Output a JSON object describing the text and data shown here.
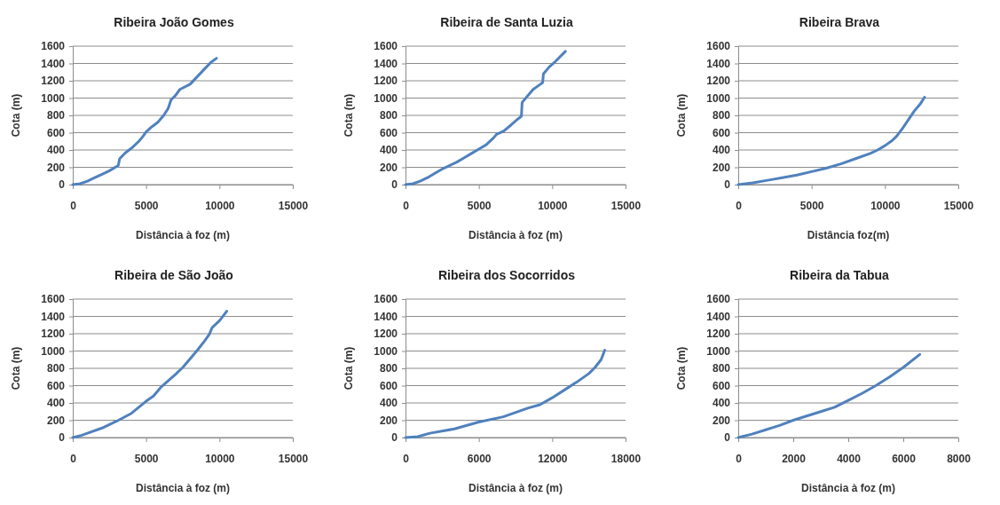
{
  "chart_data": [
    {
      "type": "line",
      "title": "Ribeira João Gomes",
      "xlabel": "Distância à foz (m)",
      "ylabel": "Cota (m)",
      "xlim": [
        0,
        15000
      ],
      "xticks": [
        0,
        5000,
        10000,
        15000
      ],
      "ylim": [
        0,
        1600
      ],
      "yticks": [
        0,
        200,
        400,
        600,
        800,
        1000,
        1200,
        1400,
        1600
      ],
      "grid": "y",
      "series": [
        {
          "color": "#4f81bd",
          "x": [
            0,
            500,
            1000,
            1500,
            2000,
            2500,
            3000,
            3100,
            3200,
            3600,
            4000,
            4500,
            4800,
            5000,
            5400,
            5800,
            6200,
            6500,
            6700,
            7000,
            7300,
            8000,
            8500,
            9000,
            9400,
            9800
          ],
          "values": [
            0,
            10,
            40,
            80,
            120,
            160,
            210,
            220,
            300,
            370,
            420,
            500,
            560,
            610,
            670,
            720,
            800,
            880,
            980,
            1030,
            1100,
            1160,
            1250,
            1340,
            1410,
            1460
          ]
        }
      ]
    },
    {
      "type": "line",
      "title": "Ribeira de Santa Luzia",
      "xlabel": "Distância à foz (m)",
      "ylabel": "Cota (m)",
      "xlim": [
        0,
        15000
      ],
      "xticks": [
        0,
        5000,
        10000,
        15000
      ],
      "ylim": [
        0,
        1600
      ],
      "yticks": [
        0,
        200,
        400,
        600,
        800,
        1000,
        1200,
        1400,
        1600
      ],
      "grid": "y",
      "series": [
        {
          "color": "#4f81bd",
          "x": [
            0,
            500,
            1000,
            1500,
            2000,
            2500,
            3000,
            3500,
            4000,
            4500,
            5000,
            5500,
            6000,
            6200,
            6700,
            7200,
            7600,
            7900,
            7950,
            8300,
            8700,
            9200,
            9350,
            9400,
            9800,
            10200,
            10900
          ],
          "values": [
            0,
            10,
            40,
            80,
            130,
            180,
            220,
            260,
            310,
            360,
            410,
            460,
            540,
            580,
            620,
            690,
            750,
            790,
            950,
            1020,
            1100,
            1160,
            1180,
            1280,
            1360,
            1420,
            1540
          ]
        }
      ]
    },
    {
      "type": "line",
      "title": "Ribeira Brava",
      "xlabel": "Distância  foz(m)",
      "ylabel": "Cota (m)",
      "xlim": [
        0,
        15000
      ],
      "xticks": [
        0,
        5000,
        10000,
        15000
      ],
      "ylim": [
        0,
        1600
      ],
      "yticks": [
        0,
        200,
        400,
        600,
        800,
        1000,
        1200,
        1400,
        1600
      ],
      "grid": "y",
      "series": [
        {
          "color": "#4f81bd",
          "x": [
            0,
            1000,
            2000,
            3000,
            4000,
            5000,
            6000,
            7000,
            8000,
            9000,
            9500,
            10000,
            10500,
            10800,
            11200,
            11600,
            12000,
            12400,
            12700
          ],
          "values": [
            0,
            20,
            50,
            80,
            110,
            150,
            190,
            240,
            300,
            360,
            400,
            450,
            510,
            560,
            650,
            750,
            850,
            930,
            1010
          ]
        }
      ]
    },
    {
      "type": "line",
      "title": "Ribeira de São João",
      "xlabel": "Distância à foz (m)",
      "ylabel": "Cota (m)",
      "xlim": [
        0,
        15000
      ],
      "xticks": [
        0,
        5000,
        10000,
        15000
      ],
      "ylim": [
        0,
        1600
      ],
      "yticks": [
        0,
        200,
        400,
        600,
        800,
        1000,
        1200,
        1400,
        1600
      ],
      "grid": "y",
      "series": [
        {
          "color": "#4f81bd",
          "x": [
            0,
            500,
            1000,
            2000,
            3000,
            4000,
            5000,
            5500,
            6000,
            7000,
            7500,
            8000,
            8500,
            9000,
            9300,
            9500,
            10000,
            10500
          ],
          "values": [
            0,
            20,
            50,
            110,
            190,
            280,
            420,
            480,
            580,
            730,
            810,
            910,
            1010,
            1120,
            1190,
            1270,
            1350,
            1460
          ]
        }
      ]
    },
    {
      "type": "line",
      "title": "Ribeira dos Socorridos",
      "xlabel": "Distância à foz (m)",
      "ylabel": "Cota (m)",
      "xlim": [
        0,
        18000
      ],
      "xticks": [
        0,
        6000,
        12000,
        18000
      ],
      "ylim": [
        0,
        1600
      ],
      "yticks": [
        0,
        200,
        400,
        600,
        800,
        1000,
        1200,
        1400,
        1600
      ],
      "grid": "y",
      "series": [
        {
          "color": "#4f81bd",
          "x": [
            0,
            1000,
            2000,
            4000,
            6000,
            8000,
            10000,
            11000,
            12000,
            13000,
            14000,
            15000,
            15500,
            16000,
            16300
          ],
          "values": [
            0,
            10,
            50,
            100,
            180,
            240,
            340,
            380,
            460,
            550,
            640,
            740,
            810,
            900,
            1010
          ]
        }
      ]
    },
    {
      "type": "line",
      "title": "Ribeira da Tabua",
      "xlabel": "Distância à foz (m)",
      "ylabel": "Cota (m)",
      "xlim": [
        0,
        8000
      ],
      "xticks": [
        0,
        2000,
        4000,
        6000,
        8000
      ],
      "ylim": [
        0,
        1600
      ],
      "yticks": [
        0,
        200,
        400,
        600,
        800,
        1000,
        1200,
        1400,
        1600
      ],
      "grid": "y",
      "series": [
        {
          "color": "#4f81bd",
          "x": [
            0,
            500,
            1000,
            1500,
            2000,
            3000,
            3500,
            4000,
            4500,
            5000,
            5500,
            6000,
            6600
          ],
          "values": [
            0,
            40,
            90,
            140,
            200,
            300,
            350,
            430,
            510,
            600,
            700,
            810,
            960
          ]
        }
      ]
    }
  ]
}
